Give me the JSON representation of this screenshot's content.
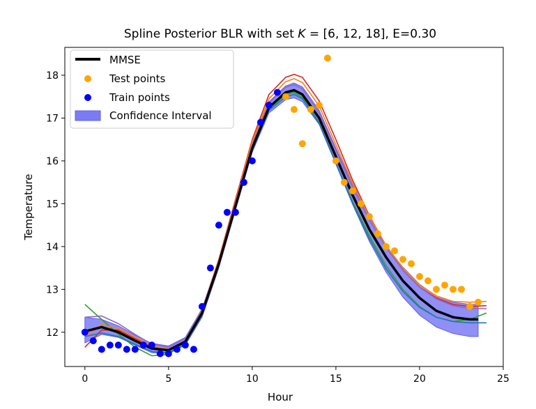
{
  "chart_data": {
    "type": "line",
    "title": "Spline Posterior BLR with set K = [6, 12, 18], E=0.30",
    "title_parts": [
      "Spline Posterior BLR with set ",
      "K",
      " = [6, 12, 18], E=0.30"
    ],
    "xlabel": "Hour",
    "ylabel": "Temperature",
    "xlim": [
      -1.2,
      25.0
    ],
    "ylim": [
      11.2,
      18.65
    ],
    "xticks": [
      0,
      5,
      10,
      15,
      20,
      25
    ],
    "yticks": [
      12,
      13,
      14,
      15,
      16,
      17,
      18
    ],
    "grid": false,
    "legend_position": "top-left",
    "legend": [
      "MMSE",
      "Test points",
      "Train points",
      "Confidence Interval"
    ],
    "colors": {
      "mmse": "#000000",
      "test": "#ffa500",
      "train": "#0000ff",
      "ci": "#7b7bf5",
      "samples": [
        "#2ca02c",
        "#d62728",
        "#9467bd",
        "#ff7f0e",
        "#1f77b4"
      ]
    },
    "mmse": {
      "x": [
        0,
        1,
        2,
        3,
        4,
        5,
        6,
        7,
        8,
        9,
        10,
        11,
        12,
        12.5,
        13,
        14,
        15,
        16,
        17,
        18,
        19,
        20,
        21,
        22,
        23,
        23.5
      ],
      "y": [
        12.02,
        12.12,
        12.0,
        11.8,
        11.62,
        11.58,
        11.78,
        12.45,
        13.6,
        14.95,
        16.3,
        17.25,
        17.6,
        17.65,
        17.55,
        17.0,
        16.1,
        15.2,
        14.4,
        13.75,
        13.2,
        12.8,
        12.5,
        12.35,
        12.3,
        12.3
      ]
    },
    "ci": {
      "x": [
        0,
        1,
        2,
        3,
        4,
        5,
        6,
        7,
        8,
        9,
        10,
        11,
        12,
        12.5,
        13,
        14,
        15,
        16,
        17,
        18,
        19,
        20,
        21,
        22,
        23,
        23.5
      ],
      "lower": [
        11.75,
        11.95,
        11.88,
        11.7,
        11.52,
        11.5,
        11.7,
        12.35,
        13.5,
        14.85,
        16.2,
        17.12,
        17.43,
        17.47,
        17.38,
        16.85,
        15.92,
        14.98,
        14.12,
        13.4,
        12.82,
        12.4,
        12.12,
        11.97,
        11.9,
        11.9
      ],
      "upper": [
        12.35,
        12.3,
        12.15,
        11.93,
        11.74,
        11.68,
        11.88,
        12.55,
        13.7,
        15.05,
        16.42,
        17.38,
        17.75,
        17.82,
        17.73,
        17.18,
        16.3,
        15.45,
        14.68,
        14.02,
        13.52,
        13.12,
        12.85,
        12.7,
        12.65,
        12.65
      ]
    },
    "samples": [
      {
        "x": [
          0,
          1,
          2,
          3,
          4,
          5,
          6,
          7,
          8,
          9,
          10,
          11,
          12,
          12.5,
          13,
          14,
          15,
          16,
          17,
          18,
          19,
          20,
          21,
          22,
          23,
          24
        ],
        "y": [
          12.65,
          12.3,
          11.95,
          11.65,
          11.45,
          11.48,
          11.78,
          12.45,
          13.6,
          14.95,
          16.3,
          17.22,
          17.55,
          17.6,
          17.48,
          16.9,
          15.95,
          15.05,
          14.25,
          13.55,
          13.0,
          12.6,
          12.35,
          12.25,
          12.3,
          12.45
        ]
      },
      {
        "x": [
          0,
          1,
          2,
          3,
          4,
          5,
          6,
          7,
          8,
          9,
          10,
          11,
          12,
          12.5,
          13,
          14,
          15,
          16,
          17,
          18,
          19,
          20,
          21,
          22,
          23,
          24
        ],
        "y": [
          11.65,
          12.05,
          12.05,
          11.85,
          11.65,
          11.6,
          11.8,
          12.5,
          13.7,
          15.1,
          16.5,
          17.55,
          17.95,
          18.02,
          17.95,
          17.4,
          16.5,
          15.55,
          14.72,
          14.02,
          13.45,
          13.05,
          12.8,
          12.65,
          12.6,
          12.62
        ]
      },
      {
        "x": [
          0,
          1,
          2,
          3,
          4,
          5,
          6,
          7,
          8,
          9,
          10,
          11,
          12,
          12.5,
          13,
          14,
          15,
          16,
          17,
          18,
          19,
          20,
          21,
          22,
          23,
          24
        ],
        "y": [
          12.35,
          12.38,
          12.2,
          11.95,
          11.72,
          11.65,
          11.85,
          12.5,
          13.65,
          15.0,
          16.4,
          17.35,
          17.72,
          17.78,
          17.68,
          17.12,
          16.25,
          15.38,
          14.62,
          13.98,
          13.45,
          13.05,
          12.78,
          12.62,
          12.55,
          12.55
        ]
      },
      {
        "x": [
          0,
          1,
          2,
          3,
          4,
          5,
          6,
          7,
          8,
          9,
          10,
          11,
          12,
          12.5,
          13,
          14,
          15,
          16,
          17,
          18,
          19,
          20,
          21,
          22,
          23,
          24
        ],
        "y": [
          11.88,
          12.18,
          12.08,
          11.88,
          11.68,
          11.6,
          11.8,
          12.5,
          13.68,
          15.05,
          16.45,
          17.45,
          17.85,
          17.92,
          17.83,
          17.28,
          16.38,
          15.48,
          14.7,
          14.02,
          13.5,
          13.1,
          12.85,
          12.72,
          12.7,
          12.72
        ]
      },
      {
        "x": [
          0,
          1,
          2,
          3,
          4,
          5,
          6,
          7,
          8,
          9,
          10,
          11,
          12,
          12.5,
          13,
          14,
          15,
          16,
          17,
          18,
          19,
          20,
          21,
          22,
          23,
          24
        ],
        "y": [
          11.9,
          11.98,
          11.9,
          11.72,
          11.55,
          11.52,
          11.72,
          12.4,
          13.55,
          14.9,
          16.25,
          17.18,
          17.5,
          17.55,
          17.45,
          16.88,
          15.95,
          15.02,
          14.18,
          13.48,
          12.95,
          12.58,
          12.35,
          12.25,
          12.22,
          12.22
        ]
      }
    ],
    "train_points": [
      {
        "x": 0,
        "y": 12.0
      },
      {
        "x": 0.5,
        "y": 11.8
      },
      {
        "x": 1.0,
        "y": 11.6
      },
      {
        "x": 1.5,
        "y": 11.7
      },
      {
        "x": 2.0,
        "y": 11.7
      },
      {
        "x": 2.5,
        "y": 11.6
      },
      {
        "x": 3.0,
        "y": 11.6
      },
      {
        "x": 3.5,
        "y": 11.7
      },
      {
        "x": 4.0,
        "y": 11.7
      },
      {
        "x": 4.5,
        "y": 11.5
      },
      {
        "x": 5.0,
        "y": 11.5
      },
      {
        "x": 5.5,
        "y": 11.6
      },
      {
        "x": 6.0,
        "y": 11.7
      },
      {
        "x": 6.5,
        "y": 11.6
      },
      {
        "x": 7.0,
        "y": 12.6
      },
      {
        "x": 7.5,
        "y": 13.5
      },
      {
        "x": 8.0,
        "y": 14.5
      },
      {
        "x": 8.5,
        "y": 14.8
      },
      {
        "x": 9.0,
        "y": 14.8
      },
      {
        "x": 9.5,
        "y": 15.5
      },
      {
        "x": 10.0,
        "y": 16.0
      },
      {
        "x": 10.5,
        "y": 16.9
      },
      {
        "x": 11.0,
        "y": 17.3
      },
      {
        "x": 11.5,
        "y": 17.6
      }
    ],
    "test_points": [
      {
        "x": 12.0,
        "y": 17.5
      },
      {
        "x": 12.5,
        "y": 17.2
      },
      {
        "x": 13.0,
        "y": 16.4
      },
      {
        "x": 13.5,
        "y": 17.2
      },
      {
        "x": 14.0,
        "y": 17.3
      },
      {
        "x": 14.5,
        "y": 18.4
      },
      {
        "x": 15.0,
        "y": 16.0
      },
      {
        "x": 15.5,
        "y": 15.5
      },
      {
        "x": 16.0,
        "y": 15.3
      },
      {
        "x": 16.5,
        "y": 15.0
      },
      {
        "x": 17.0,
        "y": 14.7
      },
      {
        "x": 17.5,
        "y": 14.3
      },
      {
        "x": 18.0,
        "y": 14.0
      },
      {
        "x": 18.5,
        "y": 13.9
      },
      {
        "x": 19.0,
        "y": 13.7
      },
      {
        "x": 19.5,
        "y": 13.6
      },
      {
        "x": 20.0,
        "y": 13.3
      },
      {
        "x": 20.5,
        "y": 13.2
      },
      {
        "x": 21.0,
        "y": 13.0
      },
      {
        "x": 21.5,
        "y": 13.1
      },
      {
        "x": 22.0,
        "y": 13.0
      },
      {
        "x": 22.5,
        "y": 13.0
      },
      {
        "x": 23.0,
        "y": 12.6
      },
      {
        "x": 23.5,
        "y": 12.7
      }
    ]
  }
}
